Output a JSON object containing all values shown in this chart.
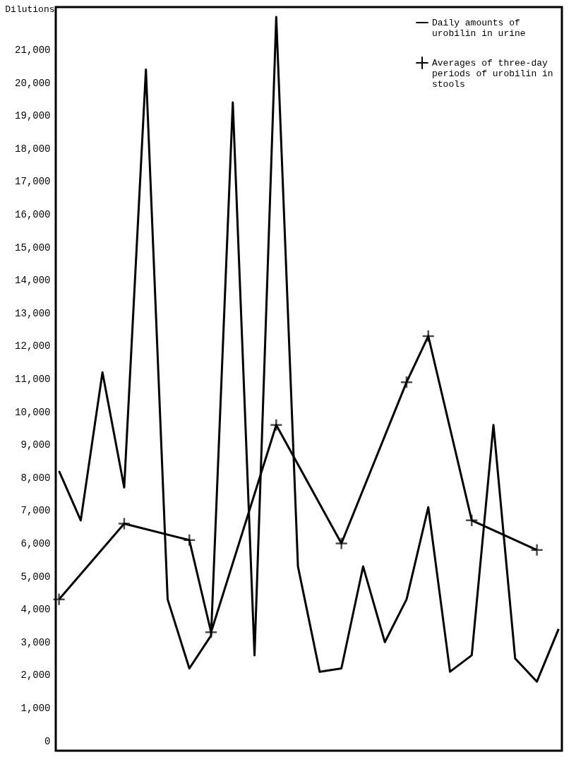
{
  "chart_data": {
    "type": "line",
    "ylabel": "Dilutions",
    "ylim": [
      -300,
      22300
    ],
    "categories": [
      null,
      null,
      null,
      null,
      null,
      null,
      null,
      null,
      null,
      null,
      null,
      null,
      null,
      null,
      null,
      null,
      null,
      null,
      null,
      null,
      null,
      null,
      null,
      null
    ],
    "yticks": [
      0,
      {
        "value": 1000,
        "label": "1,000"
      },
      {
        "value": 2000,
        "label": "2,000"
      },
      {
        "value": 3000,
        "label": "3,000"
      },
      {
        "value": 4000,
        "label": "4,000"
      },
      {
        "value": 5000,
        "label": "5,000"
      },
      {
        "value": 6000,
        "label": "6,000"
      },
      {
        "value": 7000,
        "label": "7,000"
      },
      {
        "value": 8000,
        "label": "8,000"
      },
      {
        "value": 9000,
        "label": "9,000"
      },
      {
        "value": 10000,
        "label": "10,000"
      },
      {
        "value": 11000,
        "label": "11,000"
      },
      {
        "value": 12000,
        "label": "12,000"
      },
      {
        "value": 13000,
        "label": "13,000"
      },
      {
        "value": 14000,
        "label": "14,000"
      },
      {
        "value": 15000,
        "label": "15,000"
      },
      {
        "value": 16000,
        "label": "16,000"
      },
      {
        "value": 17000,
        "label": "17,000"
      },
      {
        "value": 18000,
        "label": "18,000"
      },
      {
        "value": 19000,
        "label": "19,000"
      },
      {
        "value": 20000,
        "label": "20,000"
      },
      {
        "value": 21000,
        "label": "21,000"
      }
    ],
    "grid": false,
    "legend": "top right",
    "series": [
      {
        "name": "Daily amounts of urobilin in urine",
        "color": "#000000",
        "marker": "none",
        "values": [
          8200,
          6700,
          11200,
          7700,
          20400,
          4300,
          2200,
          3200,
          19400,
          2600,
          22000,
          5300,
          2100,
          2200,
          5300,
          3000,
          4300,
          7100,
          2100,
          2600,
          9600,
          2500,
          1800,
          3400
        ]
      },
      {
        "name": "Averages of three-day periods of urobilin in stools",
        "color": "#000000",
        "marker": "cross",
        "values": [
          4300,
          null,
          null,
          6600,
          null,
          null,
          6100,
          3300,
          null,
          null,
          9600,
          null,
          null,
          6000,
          null,
          null,
          10900,
          12300,
          null,
          6700,
          null,
          null,
          5800,
          null
        ]
      }
    ]
  }
}
